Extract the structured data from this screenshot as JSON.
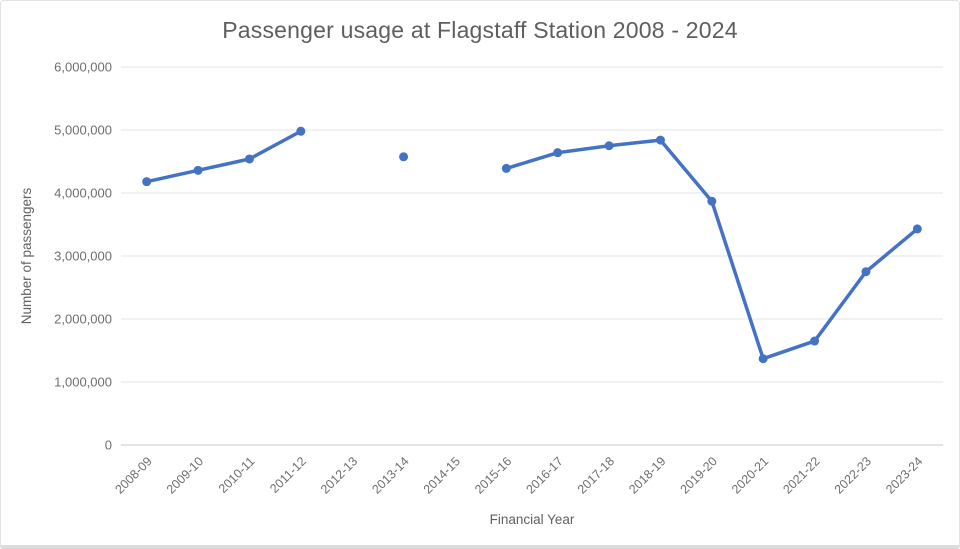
{
  "chart_data": {
    "type": "line",
    "title": "Passenger usage at Flagstaff Station 2008 - 2024",
    "xlabel": "Financial Year",
    "ylabel": "Number of passengers",
    "categories": [
      "2008-09",
      "2009-10",
      "2010-11",
      "2011-12",
      "2012-13",
      "2013-14",
      "2014-15",
      "2015-16",
      "2016-17",
      "2017-18",
      "2018-19",
      "2019-20",
      "2020-21",
      "2021-22",
      "2022-23",
      "2023-24"
    ],
    "series": [
      {
        "name": "Number of passengers",
        "values": [
          4180000,
          4360000,
          4540000,
          4980000,
          null,
          4575000,
          null,
          4390000,
          4640000,
          4750000,
          4840000,
          3870000,
          1370000,
          1650000,
          2750000,
          3430000
        ]
      }
    ],
    "ylim": [
      0,
      6000000
    ],
    "ytick_interval": 1000000,
    "ytick_labels": [
      "0",
      "1,000,000",
      "2,000,000",
      "3,000,000",
      "4,000,000",
      "5,000,000",
      "6,000,000"
    ],
    "grid": "horizontal-only",
    "legend": "none",
    "notes": "null values (2012-13, 2014-15) render as gaps; 2013-14 is an isolated marker",
    "marker": "circle"
  },
  "colors": {
    "line": "#4472c4",
    "marker": "#4472c4",
    "title_text": "#5e5e5e",
    "axis_text": "#6e6e6e",
    "gridline": "#e6e6e6",
    "baseline": "#c9c9c9",
    "card_border": "#e3e3e3",
    "background": "#ffffff"
  }
}
